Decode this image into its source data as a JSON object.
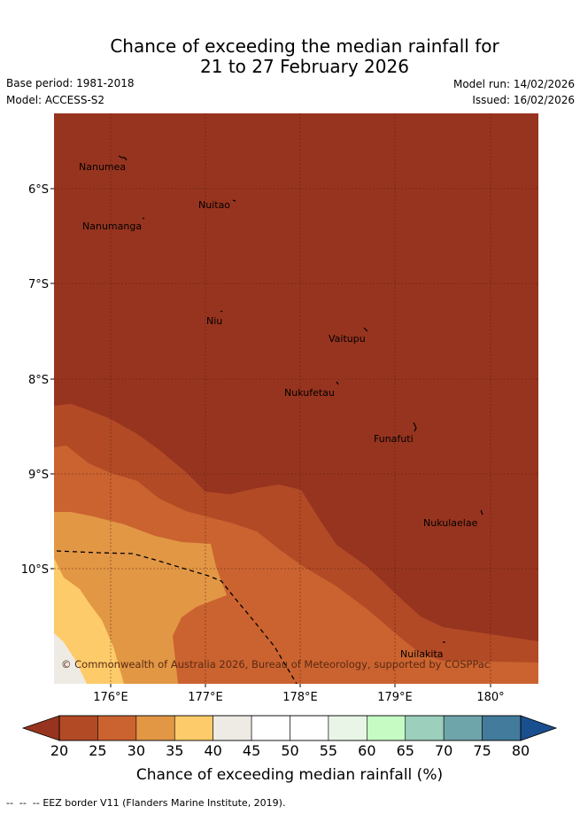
{
  "title": {
    "line1": "Chance of exceeding the median rainfall for",
    "line2": "21 to 27 February 2026"
  },
  "meta": {
    "base_period": "Base period: 1981-2018",
    "model": "Model: ACCESS-S2",
    "model_run": "Model run: 14/02/2026",
    "issued": "Issued: 16/02/2026"
  },
  "map": {
    "lat_labels": [
      "6°S",
      "7°S",
      "8°S",
      "9°S",
      "10°S"
    ],
    "lon_labels": [
      "176°E",
      "177°E",
      "178°E",
      "179°E",
      "180°"
    ],
    "places": [
      "Nanumea",
      "Nuitao",
      "Nanumanga",
      "Niu",
      "Vaitupu",
      "Nukufetau",
      "Funafuti",
      "Nukulaelae",
      "Nuilakita"
    ],
    "copyright": "© Commonwealth of Australia 2026, Bureau of Meteorology, supported by COSPPac"
  },
  "colorbar": {
    "ticks": [
      "20",
      "25",
      "30",
      "35",
      "40",
      "45",
      "50",
      "55",
      "60",
      "65",
      "70",
      "75",
      "80"
    ],
    "colors": [
      "#97341f",
      "#b24a26",
      "#cb6330",
      "#e29745",
      "#fdcb69",
      "#eeebe5",
      "#ffffff",
      "#ffffff",
      "#e9f6e7",
      "#c6fcc4",
      "#9ccfbc",
      "#6ea5aa",
      "#427b9b",
      "#1a4f8f"
    ],
    "label": "Chance of exceeding median rainfall (%)"
  },
  "footer": {
    "eez_note": "EEZ border V11 (Flanders Marine Institute, 2019)."
  }
}
